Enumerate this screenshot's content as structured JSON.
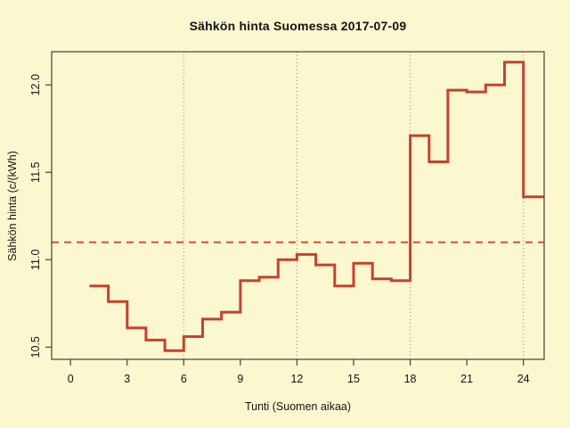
{
  "window": {
    "kind": "static-plot",
    "description": "R-style step plot of hourly electricity price in Finland"
  },
  "colors": {
    "background": "#FBF7CF",
    "step_line": "#C4432E",
    "mean_line": "#D14A30",
    "axis": "#45413A",
    "grid": "#8F8C7E",
    "text": "#141414"
  },
  "chart_data": {
    "type": "line",
    "subtype": "step",
    "title": "Sähkön hinta Suomessa 2017-07-09",
    "xlabel": "Tunti (Suomen aikaa)",
    "ylabel": "Sähkön hinta (c/(kWh)",
    "x": [
      1,
      2,
      3,
      4,
      5,
      6,
      7,
      8,
      9,
      10,
      11,
      12,
      13,
      14,
      15,
      16,
      17,
      18,
      19,
      20,
      21,
      22,
      23,
      24
    ],
    "values": [
      10.85,
      10.76,
      10.61,
      10.54,
      10.48,
      10.56,
      10.66,
      10.7,
      10.88,
      10.9,
      11.0,
      11.03,
      10.97,
      10.85,
      10.98,
      10.89,
      10.88,
      11.71,
      11.56,
      11.97,
      11.96,
      12.0,
      12.13,
      11.36
    ],
    "mean_line_y": 11.1,
    "xticks": [
      0,
      3,
      6,
      9,
      12,
      15,
      18,
      21,
      24
    ],
    "yticks": [
      10.5,
      11.0,
      11.5,
      12.0
    ],
    "grid_x": [
      6,
      12,
      18,
      24
    ],
    "xlim": [
      -1.0,
      25.1
    ],
    "ylim": [
      10.43,
      12.19
    ],
    "grid": "vertical-dotted-only",
    "legend": "none"
  }
}
